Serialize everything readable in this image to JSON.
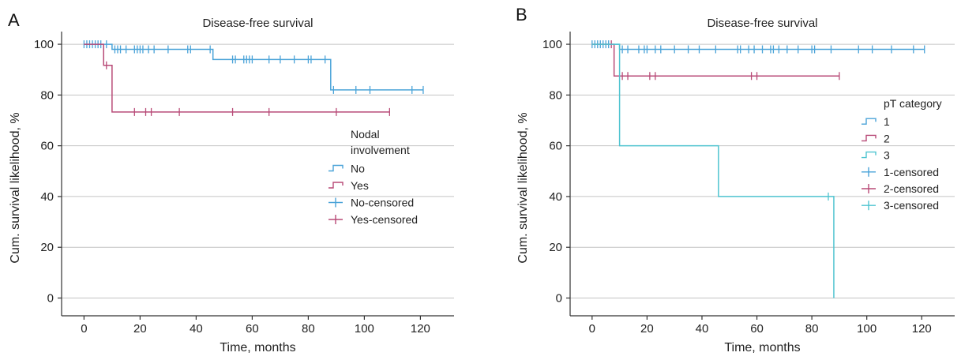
{
  "chart_data": [
    {
      "type": "line",
      "subtype": "kaplan-meier",
      "panel_label": "A",
      "title": "Disease-free survival",
      "xlabel": "Time, months",
      "ylabel": "Cum. survival likelihood, %",
      "xlim": [
        -8,
        132
      ],
      "ylim": [
        -7,
        105
      ],
      "xticks": [
        0,
        20,
        40,
        60,
        80,
        100,
        120
      ],
      "yticks": [
        0,
        20,
        40,
        60,
        80,
        100
      ],
      "grid": "horizontal",
      "legend": {
        "title_lines": [
          "Nodal",
          "involvement"
        ],
        "placement": "right-middle",
        "entries": [
          "No",
          "Yes",
          "No-censored",
          "Yes-censored"
        ]
      },
      "series": [
        {
          "name": "No",
          "color": "#4aa3d8",
          "steps": [
            [
              0,
              100
            ],
            [
              10,
              100
            ],
            [
              10,
              98
            ],
            [
              46,
              98
            ],
            [
              46,
              94
            ],
            [
              88,
              94
            ],
            [
              88,
              82
            ],
            [
              121,
              82
            ]
          ],
          "censored": [
            [
              0,
              100
            ],
            [
              1,
              100
            ],
            [
              2,
              100
            ],
            [
              3,
              100
            ],
            [
              4,
              100
            ],
            [
              5,
              100
            ],
            [
              6,
              100
            ],
            [
              8,
              100
            ],
            [
              11,
              98
            ],
            [
              12,
              98
            ],
            [
              13,
              98
            ],
            [
              15,
              98
            ],
            [
              18,
              98
            ],
            [
              19,
              98
            ],
            [
              20,
              98
            ],
            [
              21,
              98
            ],
            [
              23,
              98
            ],
            [
              25,
              98
            ],
            [
              30,
              98
            ],
            [
              37,
              98
            ],
            [
              38,
              98
            ],
            [
              45,
              98
            ],
            [
              53,
              94
            ],
            [
              54,
              94
            ],
            [
              57,
              94
            ],
            [
              58,
              94
            ],
            [
              59,
              94
            ],
            [
              60,
              94
            ],
            [
              66,
              94
            ],
            [
              70,
              94
            ],
            [
              75,
              94
            ],
            [
              80,
              94
            ],
            [
              81,
              94
            ],
            [
              86,
              94
            ],
            [
              89,
              82
            ],
            [
              97,
              82
            ],
            [
              102,
              82
            ],
            [
              117,
              82
            ],
            [
              121,
              82
            ]
          ]
        },
        {
          "name": "Yes",
          "color": "#b84a77",
          "steps": [
            [
              0,
              100
            ],
            [
              7,
              100
            ],
            [
              7,
              91.7
            ],
            [
              10,
              91.7
            ],
            [
              10,
              73.3
            ],
            [
              109,
              73.3
            ]
          ],
          "censored": [
            [
              8,
              91.7
            ],
            [
              18,
              73.3
            ],
            [
              22,
              73.3
            ],
            [
              24,
              73.3
            ],
            [
              34,
              73.3
            ],
            [
              53,
              73.3
            ],
            [
              66,
              73.3
            ],
            [
              90,
              73.3
            ],
            [
              109,
              73.3
            ]
          ]
        }
      ]
    },
    {
      "type": "line",
      "subtype": "kaplan-meier",
      "panel_label": "B",
      "title": "Disease-free survival",
      "xlabel": "Time, months",
      "ylabel": "Cum. survival likelihood, %",
      "xlim": [
        -8,
        132
      ],
      "ylim": [
        -7,
        105
      ],
      "xticks": [
        0,
        20,
        40,
        60,
        80,
        100,
        120
      ],
      "yticks": [
        0,
        20,
        40,
        60,
        80,
        100
      ],
      "grid": "horizontal",
      "legend": {
        "title_lines": [
          "pT category"
        ],
        "placement": "right-upper",
        "entries": [
          "1",
          "2",
          "3",
          "1-censored",
          "2-censored",
          "3-censored"
        ]
      },
      "series": [
        {
          "name": "1",
          "color": "#4aa3d8",
          "steps": [
            [
              0,
              100
            ],
            [
              10,
              100
            ],
            [
              10,
              98
            ],
            [
              121,
              98
            ]
          ],
          "censored": [
            [
              0,
              100
            ],
            [
              1,
              100
            ],
            [
              2,
              100
            ],
            [
              3,
              100
            ],
            [
              4,
              100
            ],
            [
              5,
              100
            ],
            [
              6,
              100
            ],
            [
              11,
              98
            ],
            [
              13,
              98
            ],
            [
              17,
              98
            ],
            [
              19,
              98
            ],
            [
              20,
              98
            ],
            [
              23,
              98
            ],
            [
              25,
              98
            ],
            [
              30,
              98
            ],
            [
              35,
              98
            ],
            [
              39,
              98
            ],
            [
              45,
              98
            ],
            [
              53,
              98
            ],
            [
              54,
              98
            ],
            [
              57,
              98
            ],
            [
              59,
              98
            ],
            [
              62,
              98
            ],
            [
              65,
              98
            ],
            [
              66,
              98
            ],
            [
              68,
              98
            ],
            [
              71,
              98
            ],
            [
              75,
              98
            ],
            [
              80,
              98
            ],
            [
              81,
              98
            ],
            [
              87,
              98
            ],
            [
              97,
              98
            ],
            [
              102,
              98
            ],
            [
              109,
              98
            ],
            [
              117,
              98
            ],
            [
              121,
              98
            ]
          ]
        },
        {
          "name": "2",
          "color": "#b84a77",
          "steps": [
            [
              0,
              100
            ],
            [
              8,
              100
            ],
            [
              8,
              87.5
            ],
            [
              90,
              87.5
            ]
          ],
          "censored": [
            [
              7,
              100
            ],
            [
              11,
              87.5
            ],
            [
              13,
              87.5
            ],
            [
              21,
              87.5
            ],
            [
              23,
              87.5
            ],
            [
              58,
              87.5
            ],
            [
              60,
              87.5
            ],
            [
              90,
              87.5
            ]
          ]
        },
        {
          "name": "3",
          "color": "#4fc4d0",
          "steps": [
            [
              0,
              100
            ],
            [
              10,
              100
            ],
            [
              10,
              60
            ],
            [
              46,
              60
            ],
            [
              46,
              40
            ],
            [
              88,
              40
            ],
            [
              88,
              0
            ]
          ],
          "censored": [
            [
              86,
              40
            ]
          ]
        }
      ]
    }
  ]
}
